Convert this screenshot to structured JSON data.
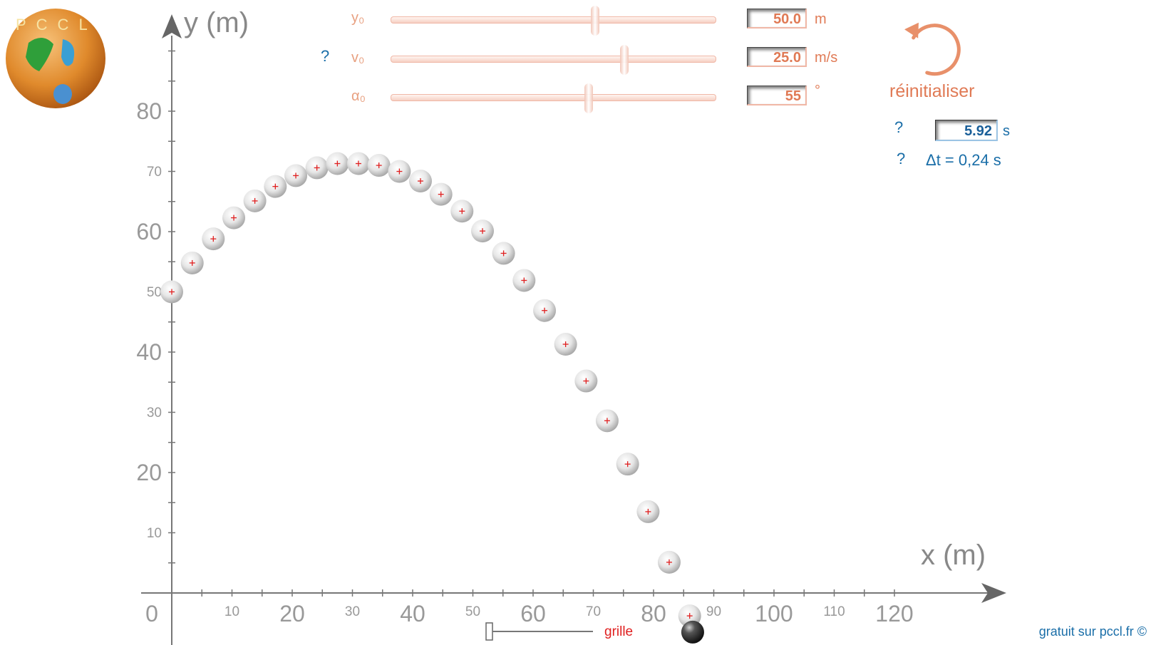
{
  "logo": {
    "letters": "PCCL"
  },
  "controls": {
    "y0": {
      "label": "y₀",
      "value": "50.0",
      "unit": "m",
      "slider_fraction": 0.63
    },
    "v0": {
      "label": "v₀",
      "value": "25.0",
      "unit": "m/s",
      "slider_fraction": 0.72,
      "help": "?"
    },
    "alpha0": {
      "label": "α₀",
      "value": "55",
      "unit": "°",
      "slider_fraction": 0.61
    }
  },
  "reset": {
    "label": "réinitialiser"
  },
  "time": {
    "help": "?",
    "value": "5.92",
    "unit": "s"
  },
  "dt": {
    "help": "?",
    "label": "Δt = 0,24 s"
  },
  "grid_toggle": {
    "label": "grille",
    "checked": false
  },
  "footer": "gratuit sur pccl.fr ©",
  "colors": {
    "accent": "#e07a55",
    "info": "#1a6ea8",
    "marker": "#e02020",
    "axis": "#777777"
  },
  "chart_data": {
    "type": "scatter",
    "xlabel": "x (m)",
    "ylabel": "y (m)",
    "xlim": [
      0,
      140
    ],
    "ylim": [
      0,
      95
    ],
    "x_ticks": [
      {
        "v": 0,
        "t": "0",
        "major": true
      },
      {
        "v": 10,
        "t": "10",
        "major": false
      },
      {
        "v": 20,
        "t": "20",
        "major": true
      },
      {
        "v": 30,
        "t": "30",
        "major": false
      },
      {
        "v": 40,
        "t": "40",
        "major": true
      },
      {
        "v": 50,
        "t": "50",
        "major": false
      },
      {
        "v": 60,
        "t": "60",
        "major": true
      },
      {
        "v": 70,
        "t": "70",
        "major": false
      },
      {
        "v": 80,
        "t": "80",
        "major": true
      },
      {
        "v": 90,
        "t": "90",
        "major": false
      },
      {
        "v": 100,
        "t": "100",
        "major": true
      },
      {
        "v": 110,
        "t": "110",
        "major": false
      },
      {
        "v": 120,
        "t": "120",
        "major": true
      }
    ],
    "y_ticks": [
      {
        "v": 10,
        "t": "10",
        "major": false
      },
      {
        "v": 20,
        "t": "20",
        "major": true
      },
      {
        "v": 30,
        "t": "30",
        "major": false
      },
      {
        "v": 40,
        "t": "40",
        "major": true
      },
      {
        "v": 50,
        "t": "50",
        "major": false
      },
      {
        "v": 60,
        "t": "60",
        "major": true
      },
      {
        "v": 70,
        "t": "70",
        "major": false
      },
      {
        "v": 80,
        "t": "80",
        "major": true
      }
    ],
    "points": [
      {
        "x": 0,
        "y": 50.0
      },
      {
        "x": 3.4,
        "y": 54.8
      },
      {
        "x": 6.9,
        "y": 58.8
      },
      {
        "x": 10.3,
        "y": 62.3
      },
      {
        "x": 13.8,
        "y": 65.1
      },
      {
        "x": 17.2,
        "y": 67.5
      },
      {
        "x": 20.6,
        "y": 69.3
      },
      {
        "x": 24.1,
        "y": 70.6
      },
      {
        "x": 27.5,
        "y": 71.3
      },
      {
        "x": 31.0,
        "y": 71.3
      },
      {
        "x": 34.4,
        "y": 71.0
      },
      {
        "x": 37.8,
        "y": 70.0
      },
      {
        "x": 41.3,
        "y": 68.4
      },
      {
        "x": 44.7,
        "y": 66.2
      },
      {
        "x": 48.2,
        "y": 63.4
      },
      {
        "x": 51.6,
        "y": 60.1
      },
      {
        "x": 55.1,
        "y": 56.4
      },
      {
        "x": 58.5,
        "y": 51.9
      },
      {
        "x": 61.9,
        "y": 46.9
      },
      {
        "x": 65.4,
        "y": 41.3
      },
      {
        "x": 68.8,
        "y": 35.2
      },
      {
        "x": 72.3,
        "y": 28.6
      },
      {
        "x": 75.7,
        "y": 21.4
      },
      {
        "x": 79.1,
        "y": 13.5
      },
      {
        "x": 82.6,
        "y": 5.1
      },
      {
        "x": 86.0,
        "y": -3.8
      }
    ],
    "projectile": {
      "x": 86.5,
      "y": -6.5
    }
  }
}
